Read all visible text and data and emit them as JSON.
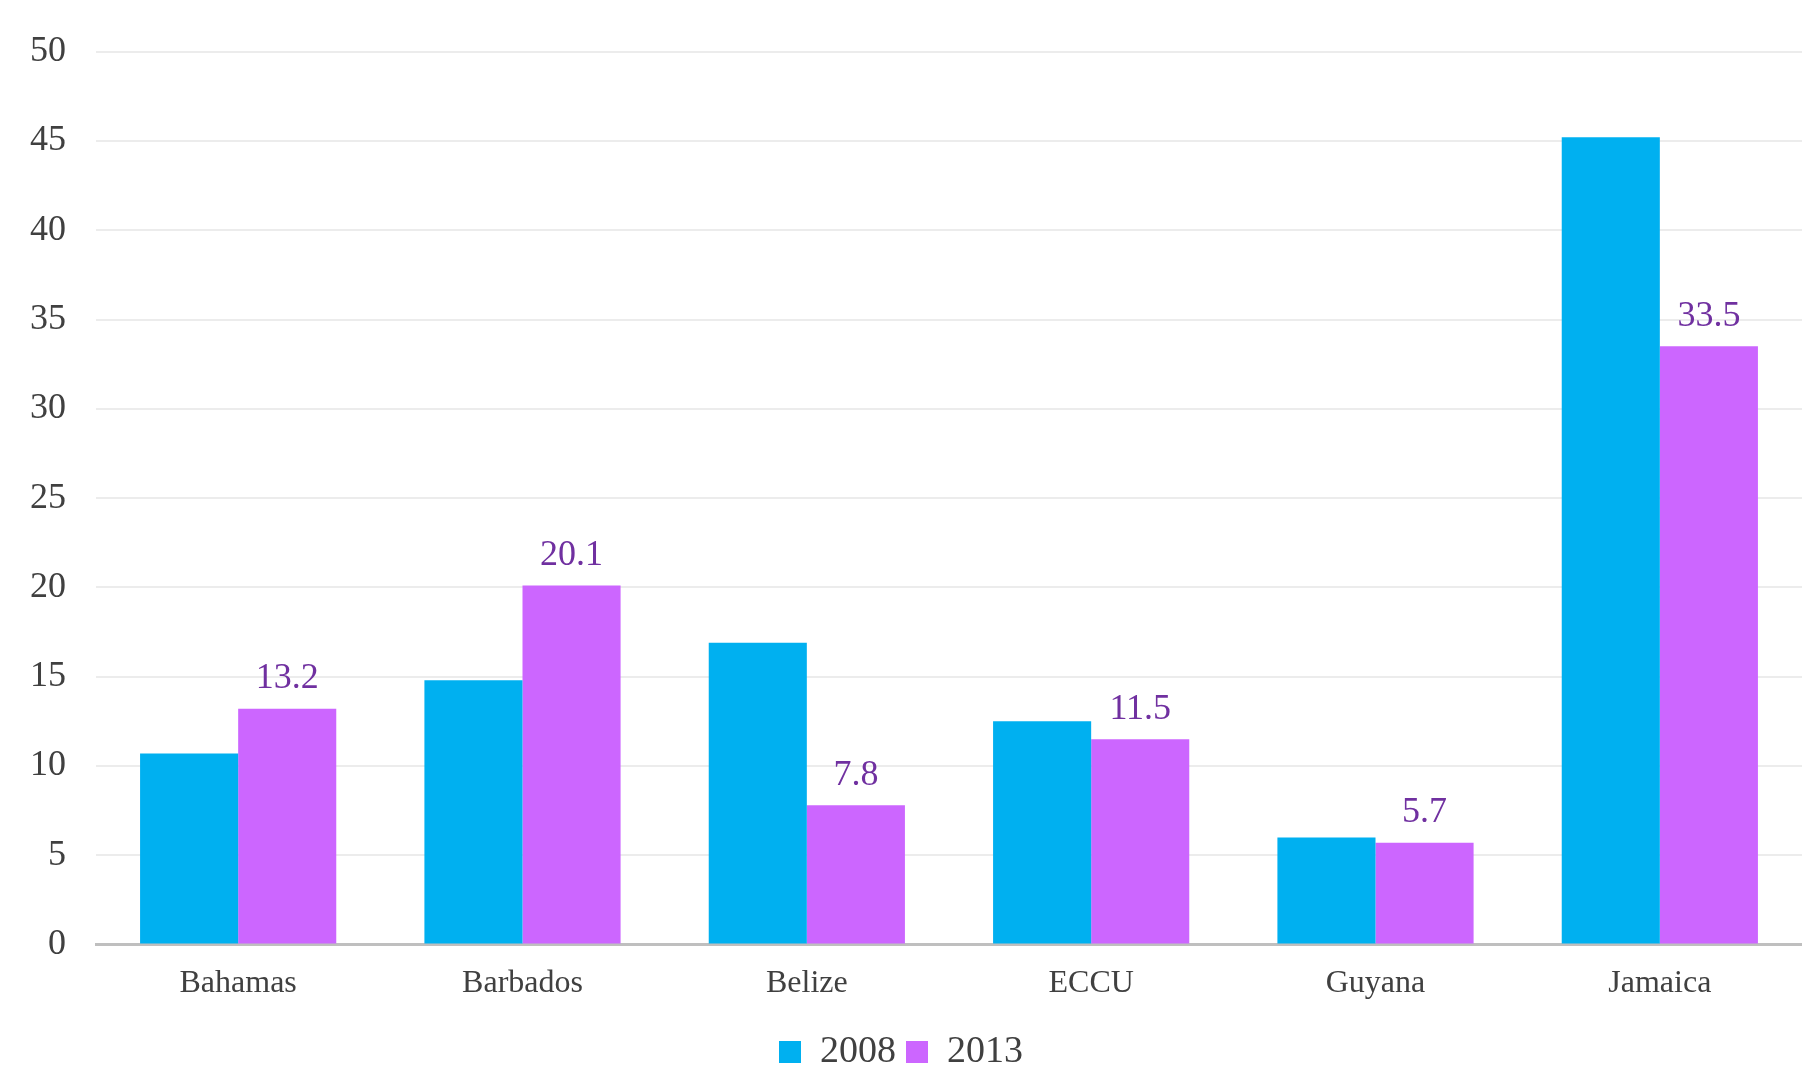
{
  "chart_data": {
    "type": "bar",
    "categories": [
      "Bahamas",
      "Barbados",
      "Belize",
      "ECCU",
      "Guyana",
      "Jamaica"
    ],
    "series": [
      {
        "name": "2008",
        "color": "#00b0f0",
        "values": [
          10.7,
          14.8,
          16.9,
          12.5,
          6.0,
          45.2
        ]
      },
      {
        "name": "2013",
        "color": "#cc66ff",
        "values": [
          13.2,
          20.1,
          7.8,
          11.5,
          5.7,
          33.5
        ],
        "value_labels": [
          "13.2",
          "20.1",
          "7.8",
          "11.5",
          "5.7",
          "33.5"
        ]
      }
    ],
    "ylim": [
      0,
      50
    ],
    "yticks": [
      0,
      5,
      10,
      15,
      20,
      25,
      30,
      35,
      40,
      45,
      50
    ],
    "grid": "y",
    "legend": "bottom"
  }
}
